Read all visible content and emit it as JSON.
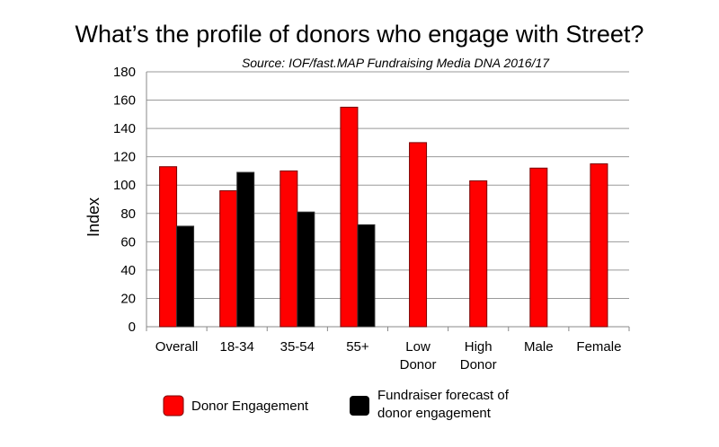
{
  "chart_data": {
    "type": "bar",
    "title": "What’s the profile of donors who engage with Street?",
    "subtitle": "Source: IOF/fast.MAP Fundraising Media DNA 2016/17",
    "xlabel": "",
    "ylabel": "Index",
    "ylim": [
      0,
      180
    ],
    "yticks": [
      0,
      20,
      40,
      60,
      80,
      100,
      120,
      140,
      160,
      180
    ],
    "grid": true,
    "legend_position": "bottom",
    "categories": [
      [
        "Overall"
      ],
      [
        "18-34"
      ],
      [
        "35-54"
      ],
      [
        "55+"
      ],
      [
        "Low",
        "Donor"
      ],
      [
        "High",
        "Donor"
      ],
      [
        "Male"
      ],
      [
        "Female"
      ]
    ],
    "series": [
      {
        "name": "Donor Engagement",
        "color": "#ff0000",
        "values": [
          113,
          96,
          110,
          155,
          130,
          103,
          112,
          115
        ]
      },
      {
        "name": "Fundraiser forecast of donor engagement",
        "legend_lines": [
          "Fundraiser forecast of",
          "donor engagement"
        ],
        "color": "#000000",
        "values": [
          71,
          109,
          81,
          72,
          null,
          null,
          null,
          null
        ]
      }
    ]
  }
}
